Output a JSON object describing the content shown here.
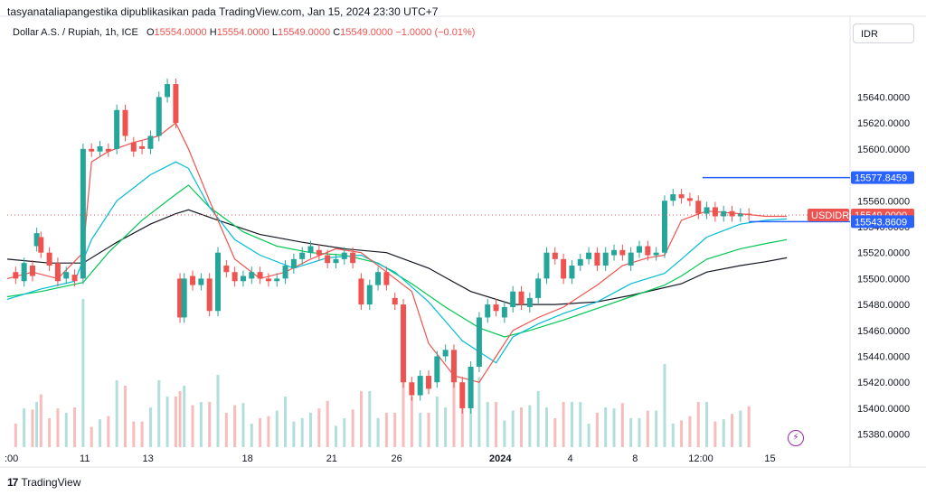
{
  "header": {
    "publisher": "tasyanataliapangestika dipublikasikan pada TradingView.com, Jan 15, 2024 23:30 UTC+7"
  },
  "symbol": {
    "name": "Dollar A.S. / Rupiah, 1h, ICE",
    "o_label": "O",
    "o_value": "15554.0000",
    "h_label": "H",
    "h_value": "15554.0000",
    "l_label": "L",
    "l_value": "15549.0000",
    "c_label": "C",
    "c_value": "15549.0000",
    "change": "−1.0000 (−0.01%)"
  },
  "currency_label": "IDR",
  "brand": {
    "name": "TradingView"
  },
  "colors": {
    "up": "#26a69a",
    "down": "#ef5350",
    "ema_fast": "#ef5350",
    "ema_mid": "#00bcd4",
    "ema_slow": "#00c853",
    "ema_long": "#131722",
    "accent": "#2962ff"
  },
  "chart_data": {
    "type": "candlestick",
    "y_axis": {
      "min": 15370,
      "max": 15680,
      "ticks": [
        "15640.0000",
        "15620.0000",
        "15600.0000",
        "15580.0000",
        "15560.0000",
        "15540.0000",
        "15520.0000",
        "15500.0000",
        "15480.0000",
        "15460.0000",
        "15440.0000",
        "15420.0000",
        "15400.0000",
        "15380.0000"
      ],
      "tick_values": [
        15640,
        15620,
        15600,
        15580,
        15560,
        15540,
        15520,
        15500,
        15480,
        15460,
        15440,
        15420,
        15400,
        15380
      ]
    },
    "x_axis": {
      "labels": [
        ":00",
        "11",
        "13",
        "18",
        "21",
        "26",
        "2024",
        "4",
        "8",
        "12:00",
        "15"
      ],
      "positions": [
        0.005,
        0.092,
        0.167,
        0.285,
        0.385,
        0.462,
        0.585,
        0.668,
        0.745,
        0.823,
        0.905
      ]
    },
    "price_labels": [
      {
        "text": "15577.8459",
        "value": 15577.8459,
        "kind": "high-line"
      },
      {
        "text": "USDIDR",
        "value": 15549,
        "kind": "symbol"
      },
      {
        "text": "15549.0000",
        "value": 15549,
        "kind": "last"
      },
      {
        "text": "15543.8609",
        "value": 15543.8609,
        "kind": "low-line"
      }
    ],
    "ema_fast": [
      [
        0,
        15500
      ],
      [
        0.03,
        15505
      ],
      [
        0.06,
        15500
      ],
      [
        0.09,
        15520
      ],
      [
        0.1,
        15590
      ],
      [
        0.12,
        15598
      ],
      [
        0.15,
        15605
      ],
      [
        0.18,
        15610
      ],
      [
        0.2,
        15620
      ],
      [
        0.215,
        15600
      ],
      [
        0.24,
        15560
      ],
      [
        0.27,
        15515
      ],
      [
        0.3,
        15500
      ],
      [
        0.33,
        15505
      ],
      [
        0.36,
        15515
      ],
      [
        0.39,
        15523
      ],
      [
        0.42,
        15520
      ],
      [
        0.45,
        15505
      ],
      [
        0.48,
        15490
      ],
      [
        0.5,
        15450
      ],
      [
        0.53,
        15425
      ],
      [
        0.56,
        15420
      ],
      [
        0.58,
        15440
      ],
      [
        0.6,
        15460
      ],
      [
        0.63,
        15470
      ],
      [
        0.66,
        15478
      ],
      [
        0.7,
        15495
      ],
      [
        0.73,
        15510
      ],
      [
        0.76,
        15516
      ],
      [
        0.78,
        15518
      ],
      [
        0.8,
        15545
      ],
      [
        0.83,
        15552
      ],
      [
        0.87,
        15550
      ],
      [
        0.9,
        15548
      ],
      [
        0.925,
        15548
      ]
    ],
    "ema_mid": [
      [
        0,
        15484
      ],
      [
        0.04,
        15492
      ],
      [
        0.08,
        15498
      ],
      [
        0.1,
        15530
      ],
      [
        0.13,
        15560
      ],
      [
        0.17,
        15580
      ],
      [
        0.2,
        15590
      ],
      [
        0.215,
        15585
      ],
      [
        0.24,
        15555
      ],
      [
        0.27,
        15530
      ],
      [
        0.3,
        15518
      ],
      [
        0.34,
        15508
      ],
      [
        0.38,
        15516
      ],
      [
        0.42,
        15518
      ],
      [
        0.46,
        15505
      ],
      [
        0.5,
        15482
      ],
      [
        0.54,
        15452
      ],
      [
        0.58,
        15435
      ],
      [
        0.6,
        15455
      ],
      [
        0.63,
        15465
      ],
      [
        0.66,
        15473
      ],
      [
        0.7,
        15482
      ],
      [
        0.74,
        15496
      ],
      [
        0.78,
        15504
      ],
      [
        0.8,
        15515
      ],
      [
        0.83,
        15532
      ],
      [
        0.87,
        15542
      ],
      [
        0.9,
        15545
      ],
      [
        0.925,
        15546
      ]
    ],
    "ema_slow": [
      [
        0,
        15486
      ],
      [
        0.04,
        15490
      ],
      [
        0.09,
        15497
      ],
      [
        0.12,
        15520
      ],
      [
        0.16,
        15545
      ],
      [
        0.2,
        15565
      ],
      [
        0.215,
        15572
      ],
      [
        0.24,
        15555
      ],
      [
        0.28,
        15536
      ],
      [
        0.32,
        15525
      ],
      [
        0.36,
        15520
      ],
      [
        0.4,
        15518
      ],
      [
        0.44,
        15512
      ],
      [
        0.48,
        15496
      ],
      [
        0.52,
        15478
      ],
      [
        0.56,
        15462
      ],
      [
        0.59,
        15455
      ],
      [
        0.62,
        15460
      ],
      [
        0.66,
        15468
      ],
      [
        0.7,
        15477
      ],
      [
        0.74,
        15486
      ],
      [
        0.78,
        15495
      ],
      [
        0.8,
        15502
      ],
      [
        0.83,
        15515
      ],
      [
        0.87,
        15523
      ],
      [
        0.9,
        15527
      ],
      [
        0.925,
        15530
      ]
    ],
    "ema_long": [
      [
        0,
        15515
      ],
      [
        0.05,
        15512
      ],
      [
        0.09,
        15512
      ],
      [
        0.13,
        15528
      ],
      [
        0.17,
        15542
      ],
      [
        0.2,
        15550
      ],
      [
        0.215,
        15553
      ],
      [
        0.25,
        15545
      ],
      [
        0.3,
        15534
      ],
      [
        0.35,
        15528
      ],
      [
        0.4,
        15523
      ],
      [
        0.45,
        15520
      ],
      [
        0.5,
        15508
      ],
      [
        0.55,
        15490
      ],
      [
        0.6,
        15480
      ],
      [
        0.65,
        15480
      ],
      [
        0.7,
        15482
      ],
      [
        0.74,
        15487
      ],
      [
        0.8,
        15496
      ],
      [
        0.83,
        15505
      ],
      [
        0.87,
        15510
      ],
      [
        0.9,
        15513
      ],
      [
        0.925,
        15516
      ]
    ],
    "candles": [
      [
        0.01,
        15505,
        15500
      ],
      [
        0.02,
        15498,
        15512
      ],
      [
        0.03,
        15510,
        15502
      ],
      [
        0.035,
        15525,
        15535
      ],
      [
        0.04,
        15532,
        15520
      ],
      [
        0.05,
        15520,
        15510
      ],
      [
        0.06,
        15512,
        15498
      ],
      [
        0.07,
        15500,
        15505
      ],
      [
        0.08,
        15503,
        15498
      ],
      [
        0.09,
        15500,
        15600
      ],
      [
        0.1,
        15600,
        15598
      ],
      [
        0.11,
        15598,
        15602
      ],
      [
        0.12,
        15600,
        15598
      ],
      [
        0.13,
        15600,
        15630
      ],
      [
        0.14,
        15630,
        15610
      ],
      [
        0.15,
        15605,
        15598
      ],
      [
        0.16,
        15602,
        15600
      ],
      [
        0.17,
        15600,
        15610
      ],
      [
        0.18,
        15610,
        15640
      ],
      [
        0.19,
        15640,
        15650
      ],
      [
        0.2,
        15650,
        15620
      ],
      [
        0.205,
        15500,
        15470
      ],
      [
        0.21,
        15470,
        15500
      ],
      [
        0.22,
        15502,
        15495
      ],
      [
        0.23,
        15495,
        15500
      ],
      [
        0.24,
        15500,
        15475
      ],
      [
        0.25,
        15475,
        15520
      ],
      [
        0.26,
        15510,
        15505
      ],
      [
        0.27,
        15505,
        15498
      ],
      [
        0.28,
        15498,
        15502
      ],
      [
        0.29,
        15500,
        15505
      ],
      [
        0.3,
        15505,
        15500
      ],
      [
        0.31,
        15500,
        15498
      ],
      [
        0.32,
        15498,
        15500
      ],
      [
        0.33,
        15500,
        15510
      ],
      [
        0.34,
        15508,
        15515
      ],
      [
        0.35,
        15515,
        15520
      ],
      [
        0.36,
        15520,
        15525
      ],
      [
        0.37,
        15522,
        15518
      ],
      [
        0.38,
        15518,
        15512
      ],
      [
        0.39,
        15512,
        15515
      ],
      [
        0.4,
        15515,
        15520
      ],
      [
        0.41,
        15520,
        15512
      ],
      [
        0.42,
        15500,
        15480
      ],
      [
        0.43,
        15480,
        15495
      ],
      [
        0.44,
        15495,
        15505
      ],
      [
        0.45,
        15505,
        15495
      ],
      [
        0.46,
        15485,
        15480
      ],
      [
        0.47,
        15480,
        15420
      ],
      [
        0.48,
        15420,
        15410
      ],
      [
        0.49,
        15410,
        15425
      ],
      [
        0.5,
        15425,
        15415
      ],
      [
        0.51,
        15420,
        15440
      ],
      [
        0.52,
        15440,
        15445
      ],
      [
        0.53,
        15445,
        15420
      ],
      [
        0.54,
        15420,
        15400
      ],
      [
        0.55,
        15400,
        15432
      ],
      [
        0.56,
        15432,
        15470
      ],
      [
        0.57,
        15470,
        15480
      ],
      [
        0.58,
        15480,
        15475
      ],
      [
        0.59,
        15470,
        15478
      ],
      [
        0.6,
        15478,
        15490
      ],
      [
        0.61,
        15490,
        15480
      ],
      [
        0.62,
        15478,
        15485
      ],
      [
        0.63,
        15485,
        15500
      ],
      [
        0.64,
        15500,
        15520
      ],
      [
        0.65,
        15520,
        15515
      ],
      [
        0.66,
        15515,
        15500
      ],
      [
        0.67,
        15500,
        15510
      ],
      [
        0.68,
        15510,
        15515
      ],
      [
        0.69,
        15515,
        15520
      ],
      [
        0.7,
        15520,
        15510
      ],
      [
        0.71,
        15510,
        15520
      ],
      [
        0.72,
        15518,
        15522
      ],
      [
        0.73,
        15522,
        15518
      ],
      [
        0.74,
        15510,
        15520
      ],
      [
        0.75,
        15520,
        15525
      ],
      [
        0.76,
        15525,
        15518
      ],
      [
        0.77,
        15518,
        15520
      ],
      [
        0.78,
        15520,
        15560
      ],
      [
        0.79,
        15560,
        15565
      ],
      [
        0.8,
        15565,
        15562
      ],
      [
        0.81,
        15562,
        15560
      ],
      [
        0.82,
        15560,
        15550
      ],
      [
        0.83,
        15550,
        15555
      ],
      [
        0.84,
        15555,
        15548
      ],
      [
        0.85,
        15548,
        15552
      ],
      [
        0.86,
        15552,
        15548
      ],
      [
        0.87,
        15548,
        15550
      ],
      [
        0.88,
        15550,
        15549
      ]
    ]
  }
}
